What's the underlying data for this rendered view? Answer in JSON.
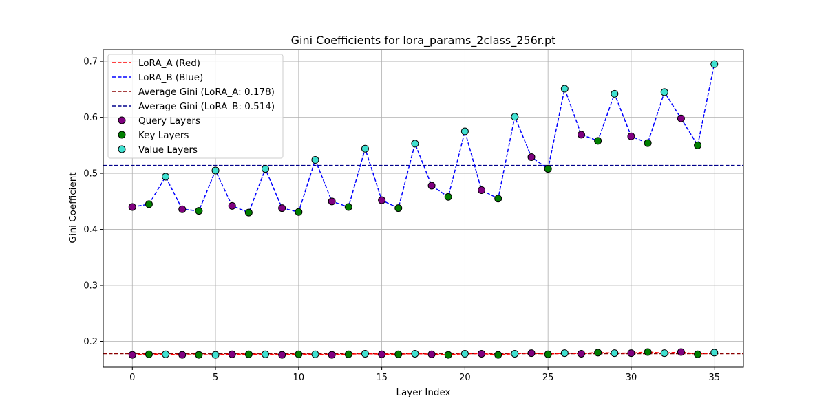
{
  "chart_data": {
    "type": "line",
    "title": "Gini Coefficients for lora_params_2class_256r.pt",
    "xlabel": "Layer Index",
    "ylabel": "Gini Coefficient",
    "xlim": [
      -1.75,
      36.75
    ],
    "ylim": [
      0.154,
      0.721
    ],
    "x_ticks": [
      0,
      5,
      10,
      15,
      20,
      25,
      30,
      35
    ],
    "y_ticks": [
      0.2,
      0.3,
      0.4,
      0.5,
      0.6,
      0.7
    ],
    "grid": true,
    "legend_position": "upper-left",
    "x": [
      0,
      1,
      2,
      3,
      4,
      5,
      6,
      7,
      8,
      9,
      10,
      11,
      12,
      13,
      14,
      15,
      16,
      17,
      18,
      19,
      20,
      21,
      22,
      23,
      24,
      25,
      26,
      27,
      28,
      29,
      30,
      31,
      32,
      33,
      34,
      35
    ],
    "layer_types": [
      "query",
      "key",
      "value",
      "query",
      "key",
      "value",
      "query",
      "key",
      "value",
      "query",
      "key",
      "value",
      "query",
      "key",
      "value",
      "query",
      "key",
      "value",
      "query",
      "key",
      "value",
      "query",
      "key",
      "value",
      "query",
      "key",
      "value",
      "query",
      "key",
      "value",
      "query",
      "key",
      "value",
      "query",
      "key",
      "value"
    ],
    "series": [
      {
        "name": "LoRA_A (Red)",
        "color": "#ff0000",
        "values": [
          0.176,
          0.177,
          0.177,
          0.176,
          0.176,
          0.176,
          0.177,
          0.177,
          0.177,
          0.176,
          0.177,
          0.177,
          0.176,
          0.177,
          0.178,
          0.177,
          0.177,
          0.178,
          0.177,
          0.176,
          0.178,
          0.178,
          0.176,
          0.178,
          0.179,
          0.177,
          0.179,
          0.178,
          0.18,
          0.179,
          0.179,
          0.181,
          0.179,
          0.181,
          0.177,
          0.18
        ]
      },
      {
        "name": "LoRA_B (Blue)",
        "color": "#0000ff",
        "values": [
          0.44,
          0.445,
          0.494,
          0.436,
          0.433,
          0.505,
          0.442,
          0.43,
          0.508,
          0.438,
          0.431,
          0.524,
          0.45,
          0.44,
          0.544,
          0.452,
          0.438,
          0.553,
          0.478,
          0.458,
          0.575,
          0.47,
          0.455,
          0.601,
          0.529,
          0.508,
          0.651,
          0.569,
          0.558,
          0.642,
          0.566,
          0.554,
          0.645,
          0.598,
          0.55,
          0.695
        ]
      }
    ],
    "average_lines": [
      {
        "name": "Average Gini (LoRA_A: 0.178)",
        "value": 0.178,
        "color": "#8b0000"
      },
      {
        "name": "Average Gini (LoRA_B: 0.514)",
        "value": 0.514,
        "color": "#00008b"
      }
    ],
    "marker_groups": [
      {
        "name": "Query Layers",
        "type": "query",
        "color": "#800080"
      },
      {
        "name": "Key Layers",
        "type": "key",
        "color": "#008000"
      },
      {
        "name": "Value Layers",
        "type": "value",
        "color": "#40e0d0"
      }
    ]
  }
}
